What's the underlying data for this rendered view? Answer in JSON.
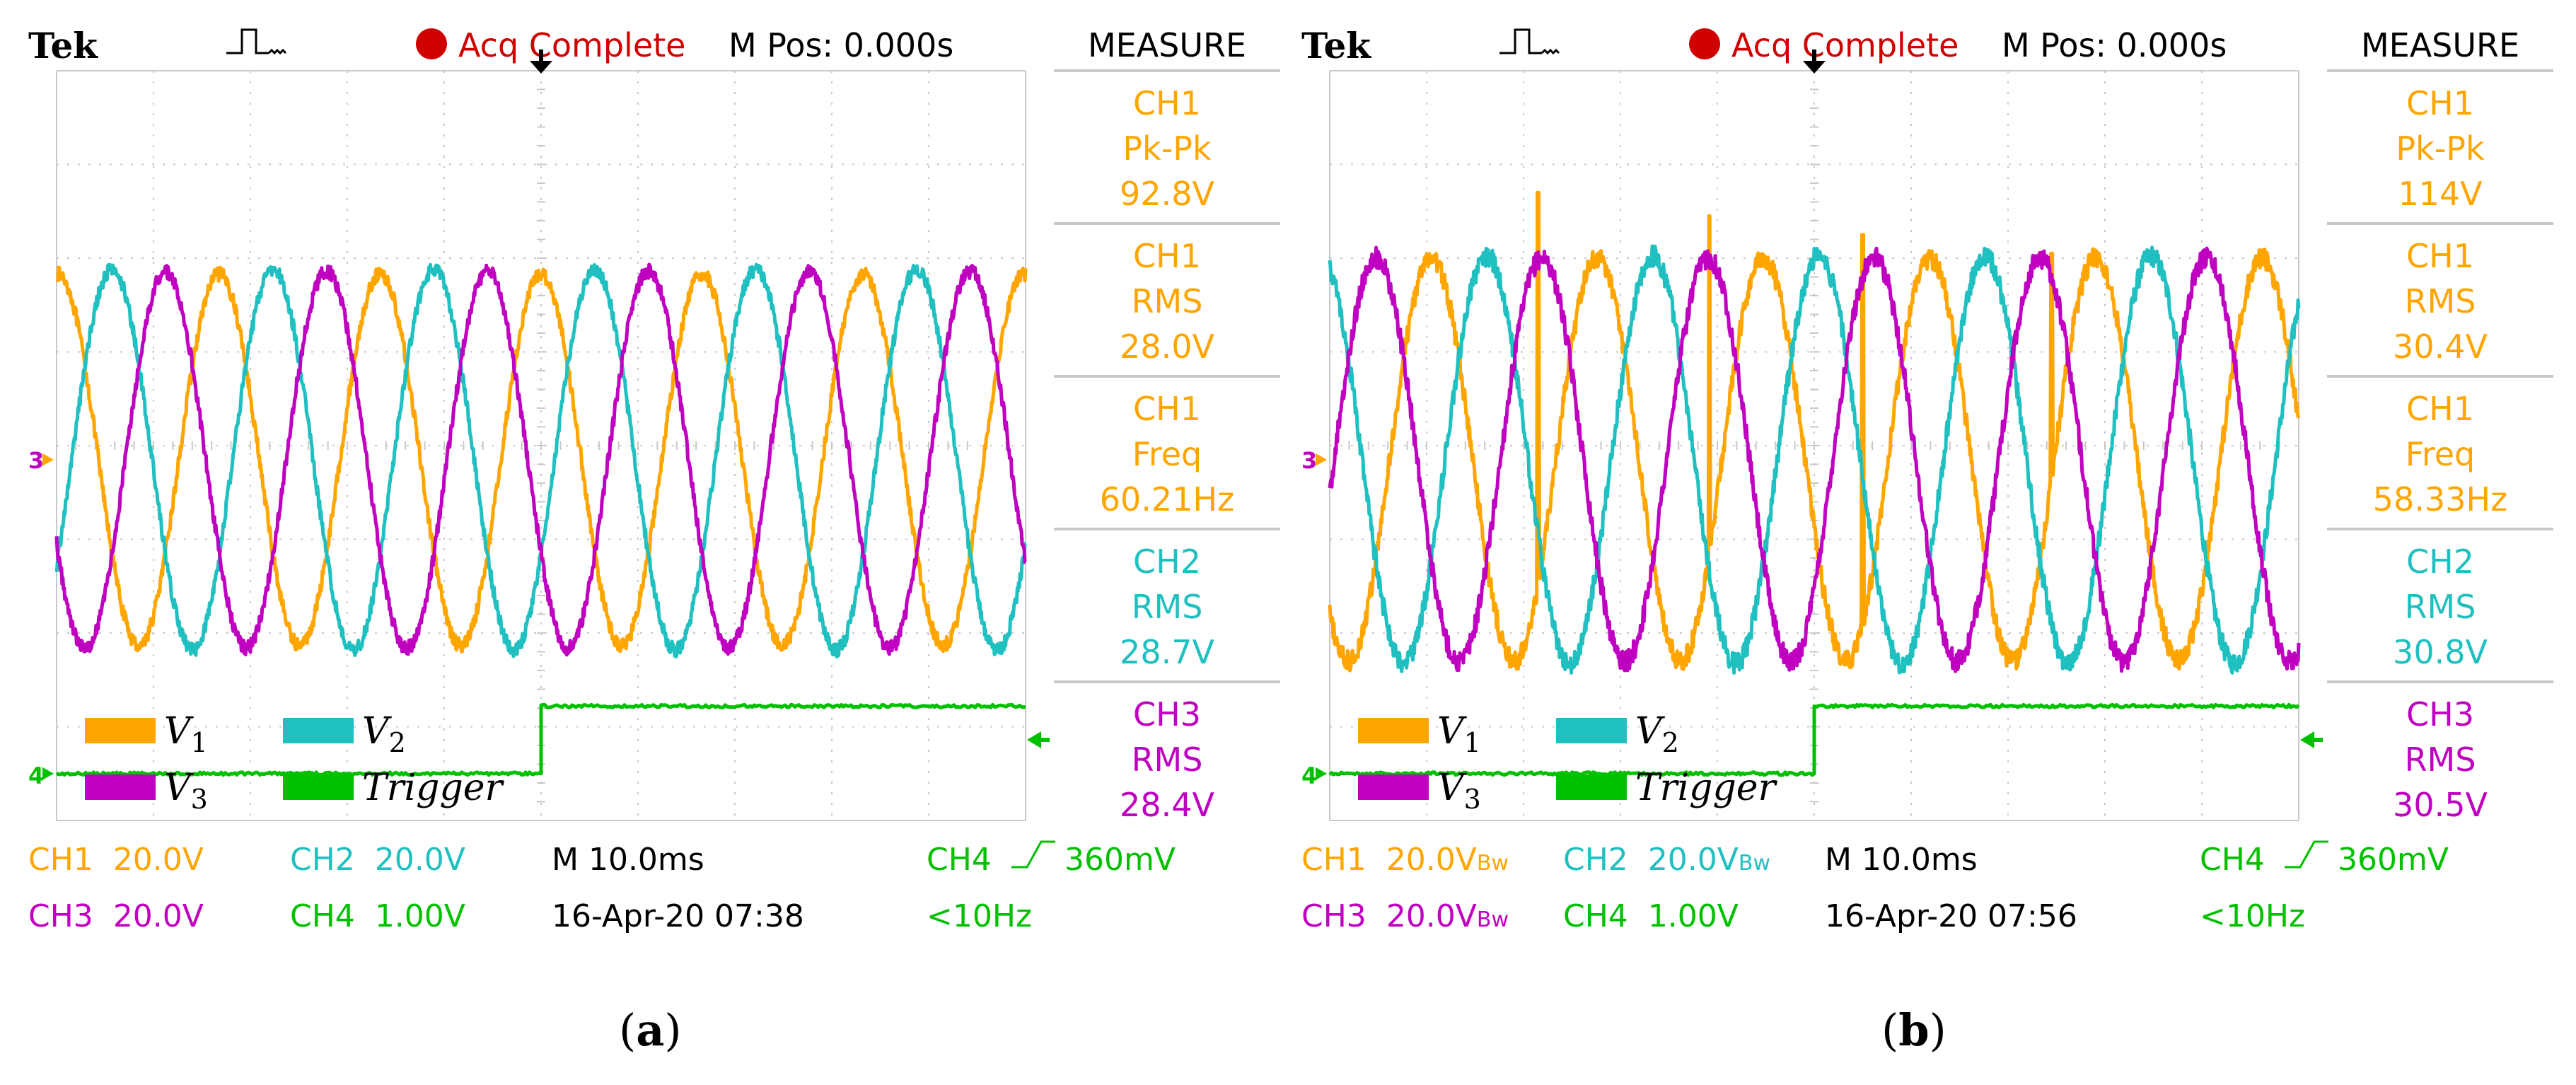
{
  "colors": {
    "ch1": "#ffa500",
    "ch2": "#20c0c0",
    "ch3": "#c000c0",
    "ch4": "#00c000",
    "acq_dot": "#d00000",
    "acq_text": "#d00000",
    "grid": "#c8c8c8",
    "panel_border": "#c8c8c8",
    "text": "#000000"
  },
  "icons": {
    "trigger_pulse": "pulse-waveform-icon",
    "acq_status": "red-dot-icon",
    "trigger_position": "down-arrow-icon",
    "ch3_marker": "ch3-ground-marker-icon",
    "ch4_marker": "ch4-ground-marker-icon",
    "trigger_level": "left-arrow-icon",
    "trigger_slope": "rising-edge-icon"
  },
  "scopes": [
    {
      "id": "a",
      "header": {
        "brand": "Tek",
        "status": "Acq Complete",
        "mpos": "M Pos: 0.000s",
        "menu": "MEASURE"
      },
      "measurements": [
        {
          "lines": [
            "CH1",
            "Pk-Pk",
            "92.8V"
          ],
          "channel": "ch1"
        },
        {
          "lines": [
            "CH1",
            "RMS",
            "28.0V"
          ],
          "channel": "ch1"
        },
        {
          "lines": [
            "CH1",
            "Freq",
            "60.21Hz"
          ],
          "channel": "ch1"
        },
        {
          "lines": [
            "CH2",
            "RMS",
            "28.7V"
          ],
          "channel": "ch2"
        },
        {
          "lines": [
            "CH3",
            "RMS",
            "28.4V"
          ],
          "channel": "ch3"
        }
      ],
      "markers": {
        "ch3": "3",
        "ch4": "4"
      },
      "legend": [
        {
          "symbol": "V",
          "sub": "1",
          "channel": "ch1"
        },
        {
          "symbol": "V",
          "sub": "2",
          "channel": "ch2"
        },
        {
          "symbol": "V",
          "sub": "3",
          "channel": "ch3"
        },
        {
          "symbol": "Trigger",
          "sub": "",
          "channel": "ch4"
        }
      ],
      "footer": {
        "ch1": {
          "label": "CH1",
          "value": "20.0V",
          "bw": ""
        },
        "ch2": {
          "label": "CH2",
          "value": "20.0V",
          "bw": ""
        },
        "ch3": {
          "label": "CH3",
          "value": "20.0V",
          "bw": ""
        },
        "ch4": {
          "label": "CH4",
          "value": "1.00V",
          "bw": ""
        },
        "timebase": "M 10.0ms",
        "datetime": "16-Apr-20 07:38",
        "trig_source": "CH4",
        "trig_level": "360mV",
        "trig_freq": "<10Hz"
      },
      "caption": "a"
    },
    {
      "id": "b",
      "header": {
        "brand": "Tek",
        "status": "Acq Complete",
        "mpos": "M Pos: 0.000s",
        "menu": "MEASURE"
      },
      "measurements": [
        {
          "lines": [
            "CH1",
            "Pk-Pk",
            "114V"
          ],
          "channel": "ch1"
        },
        {
          "lines": [
            "CH1",
            "RMS",
            "30.4V"
          ],
          "channel": "ch1"
        },
        {
          "lines": [
            "CH1",
            "Freq",
            "58.33Hz"
          ],
          "channel": "ch1"
        },
        {
          "lines": [
            "CH2",
            "RMS",
            "30.8V"
          ],
          "channel": "ch2"
        },
        {
          "lines": [
            "CH3",
            "RMS",
            "30.5V"
          ],
          "channel": "ch3"
        }
      ],
      "markers": {
        "ch3": "3",
        "ch4": "4"
      },
      "legend": [
        {
          "symbol": "V",
          "sub": "1",
          "channel": "ch1"
        },
        {
          "symbol": "V",
          "sub": "2",
          "channel": "ch2"
        },
        {
          "symbol": "V",
          "sub": "3",
          "channel": "ch3"
        },
        {
          "symbol": "Trigger",
          "sub": "",
          "channel": "ch4"
        }
      ],
      "footer": {
        "ch1": {
          "label": "CH1",
          "value": "20.0V",
          "bw": "Bw"
        },
        "ch2": {
          "label": "CH2",
          "value": "20.0V",
          "bw": "Bw"
        },
        "ch3": {
          "label": "CH3",
          "value": "20.0V",
          "bw": "Bw"
        },
        "ch4": {
          "label": "CH4",
          "value": "1.00V",
          "bw": ""
        },
        "timebase": "M 10.0ms",
        "datetime": "16-Apr-20 07:56",
        "trig_source": "CH4",
        "trig_level": "360mV",
        "trig_freq": "<10Hz"
      },
      "caption": "b"
    }
  ],
  "chart_data": [
    {
      "type": "line",
      "panel": "a",
      "x_unit": "ms",
      "x_range": [
        -50,
        50
      ],
      "grid_divisions": {
        "x": 10,
        "y": 8
      },
      "volts_per_div": {
        "ch1": 20,
        "ch2": 20,
        "ch3": 20,
        "ch4": 1
      },
      "series": [
        {
          "name": "V1",
          "channel": "ch1",
          "shape": "sine",
          "amplitude_V": 39.6,
          "frequency_Hz": 60.21,
          "phase_deg": 90,
          "offset_div": -0.15,
          "noise_V": 1.5
        },
        {
          "name": "V2",
          "channel": "ch2",
          "shape": "sine",
          "amplitude_V": 40.6,
          "frequency_Hz": 60.21,
          "phase_deg": -30,
          "offset_div": -0.15,
          "noise_V": 1.5
        },
        {
          "name": "V3",
          "channel": "ch3",
          "shape": "sine",
          "amplitude_V": 40.2,
          "frequency_Hz": 60.21,
          "phase_deg": 210,
          "offset_div": -0.15,
          "noise_V": 1.5
        },
        {
          "name": "Trigger",
          "channel": "ch4",
          "shape": "step",
          "low_V": 0,
          "high_V": 0.72,
          "step_at_ms": 0,
          "baseline_div": -3.5
        }
      ]
    },
    {
      "type": "line",
      "panel": "b",
      "x_unit": "ms",
      "x_range": [
        -50,
        50
      ],
      "grid_divisions": {
        "x": 10,
        "y": 8
      },
      "volts_per_div": {
        "ch1": 20,
        "ch2": 20,
        "ch3": 20,
        "ch4": 1
      },
      "series": [
        {
          "name": "V1",
          "channel": "ch1",
          "shape": "sine",
          "amplitude_V": 43.0,
          "frequency_Hz": 58.33,
          "phase_deg": 200,
          "offset_div": -0.15,
          "noise_V": 2.2,
          "spikes": [
            {
              "t_ms": -28.5,
              "V": 57
            },
            {
              "t_ms": -10.8,
              "V": 52
            },
            {
              "t_ms": 5.0,
              "V": 48
            },
            {
              "t_ms": 24.5,
              "V": 44
            }
          ]
        },
        {
          "name": "V2",
          "channel": "ch2",
          "shape": "sine",
          "amplitude_V": 43.5,
          "frequency_Hz": 58.33,
          "phase_deg": 80,
          "offset_div": -0.15,
          "noise_V": 2.2
        },
        {
          "name": "V3",
          "channel": "ch3",
          "shape": "sine",
          "amplitude_V": 43.1,
          "frequency_Hz": 58.33,
          "phase_deg": -40,
          "offset_div": -0.15,
          "noise_V": 2.2
        },
        {
          "name": "Trigger",
          "channel": "ch4",
          "shape": "step",
          "low_V": 0,
          "high_V": 0.72,
          "step_at_ms": 0,
          "baseline_div": -3.5
        }
      ]
    }
  ]
}
